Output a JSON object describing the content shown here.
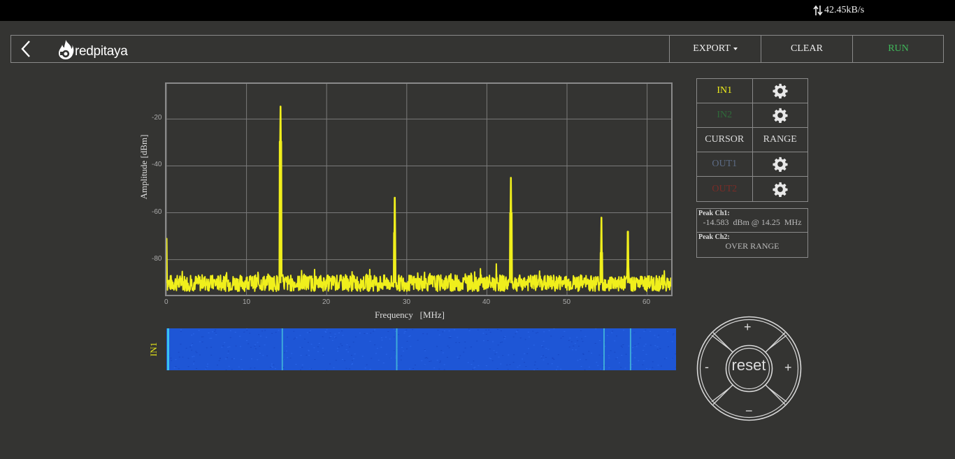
{
  "topbar": {
    "rate": "42.45kB/s"
  },
  "header": {
    "logo_text": "redpitaya",
    "export_label": "EXPORT",
    "clear_label": "CLEAR",
    "run_label": "RUN"
  },
  "plot": {
    "xlabel": "Frequency   [MHz]",
    "ylabel": "Amplitude  [dBm]",
    "yticks": [
      "-20",
      "-40",
      "-60",
      "-80"
    ],
    "xticks": [
      "0",
      "10",
      "20",
      "30",
      "40",
      "50",
      "60"
    ]
  },
  "chart_data": {
    "type": "line",
    "xlabel": "Frequency   [MHz]",
    "ylabel": "Amplitude  [dBm]",
    "xlim": [
      0,
      63
    ],
    "ylim": [
      -95,
      -5
    ],
    "grid": true,
    "series": [
      {
        "name": "IN1",
        "color": "#f0ef1c",
        "noise_floor_dbm": -90,
        "peaks": [
          {
            "x": 0.0,
            "y": -71
          },
          {
            "x": 14.25,
            "y": -14.6
          },
          {
            "x": 28.5,
            "y": -53.5
          },
          {
            "x": 43.0,
            "y": -45
          },
          {
            "x": 54.3,
            "y": -62
          },
          {
            "x": 57.6,
            "y": -68
          }
        ]
      }
    ]
  },
  "waterfall": {
    "label": "IN1",
    "base_color": "#1e56d6",
    "line_freqs_mhz": [
      0,
      14.25,
      28.5,
      54.3,
      57.6
    ]
  },
  "controls": {
    "in1": "IN1",
    "in2": "IN2",
    "cursor": "CURSOR",
    "range": "RANGE",
    "out1": "OUT1",
    "out2": "OUT2",
    "colors": {
      "in1": "#f0ef1c",
      "in2": "#2f6b3a",
      "out1": "#5c6b85",
      "out2": "#7a2c27"
    }
  },
  "peaks": {
    "ch1_title": "Peak  Ch1:",
    "ch1_value": "-14.583  dBm @ 14.25  MHz",
    "ch2_title": "Peak  Ch2:",
    "ch2_value": "OVER RANGE"
  },
  "pad": {
    "reset": "reset",
    "up": "+",
    "down": "−",
    "left": "-",
    "right": "+"
  }
}
